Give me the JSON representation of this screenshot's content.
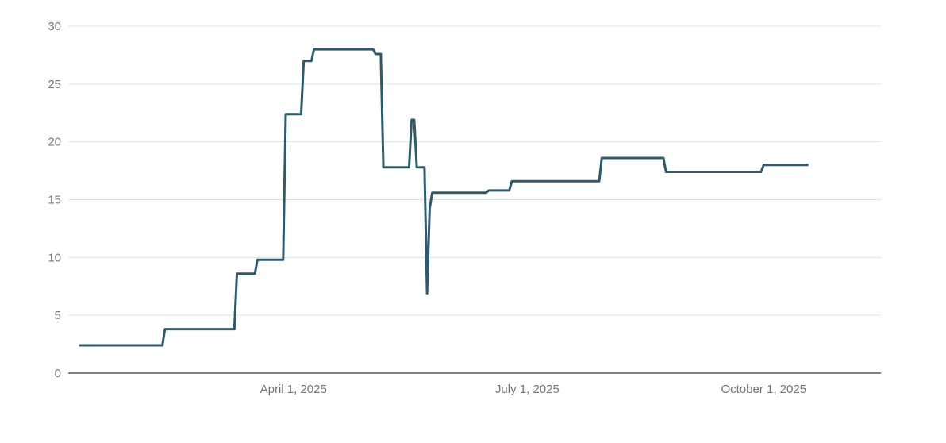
{
  "chart_data": {
    "type": "line",
    "title": "",
    "xlabel": "",
    "ylabel": "",
    "ylim": [
      0,
      30
    ],
    "xlim": [
      "2025-01-08",
      "2025-11-11"
    ],
    "yticks": [
      0,
      5,
      10,
      15,
      20,
      25,
      30
    ],
    "xticks": [
      {
        "date": "2025-04-01",
        "label": "April 1, 2025"
      },
      {
        "date": "2025-07-01",
        "label": "July 1, 2025"
      },
      {
        "date": "2025-10-01",
        "label": "October 1, 2025"
      }
    ],
    "grid": true,
    "line_color": "#2e5a6e",
    "series": [
      {
        "points": [
          [
            "2025-01-08",
            2.4
          ],
          [
            "2025-02-09",
            2.4
          ],
          [
            "2025-02-10",
            3.8
          ],
          [
            "2025-03-09",
            3.8
          ],
          [
            "2025-03-10",
            8.6
          ],
          [
            "2025-03-17",
            8.6
          ],
          [
            "2025-03-18",
            9.8
          ],
          [
            "2025-03-28",
            9.8
          ],
          [
            "2025-03-29",
            22.4
          ],
          [
            "2025-04-04",
            22.4
          ],
          [
            "2025-04-05",
            27.0
          ],
          [
            "2025-04-08",
            27.0
          ],
          [
            "2025-04-09",
            28.0
          ],
          [
            "2025-05-02",
            28.0
          ],
          [
            "2025-05-03",
            27.6
          ],
          [
            "2025-05-05",
            27.6
          ],
          [
            "2025-05-06",
            17.8
          ],
          [
            "2025-05-16",
            17.8
          ],
          [
            "2025-05-17",
            21.9
          ],
          [
            "2025-05-18",
            21.9
          ],
          [
            "2025-05-19",
            17.8
          ],
          [
            "2025-05-22",
            17.8
          ],
          [
            "2025-05-23",
            6.9
          ],
          [
            "2025-05-24",
            14.2
          ],
          [
            "2025-05-25",
            15.6
          ],
          [
            "2025-06-15",
            15.6
          ],
          [
            "2025-06-16",
            15.8
          ],
          [
            "2025-06-24",
            15.8
          ],
          [
            "2025-06-25",
            16.6
          ],
          [
            "2025-07-29",
            16.6
          ],
          [
            "2025-07-30",
            18.6
          ],
          [
            "2025-08-23",
            18.6
          ],
          [
            "2025-08-24",
            17.4
          ],
          [
            "2025-09-30",
            17.4
          ],
          [
            "2025-10-01",
            18.0
          ],
          [
            "2025-10-18",
            18.0
          ]
        ]
      }
    ]
  }
}
